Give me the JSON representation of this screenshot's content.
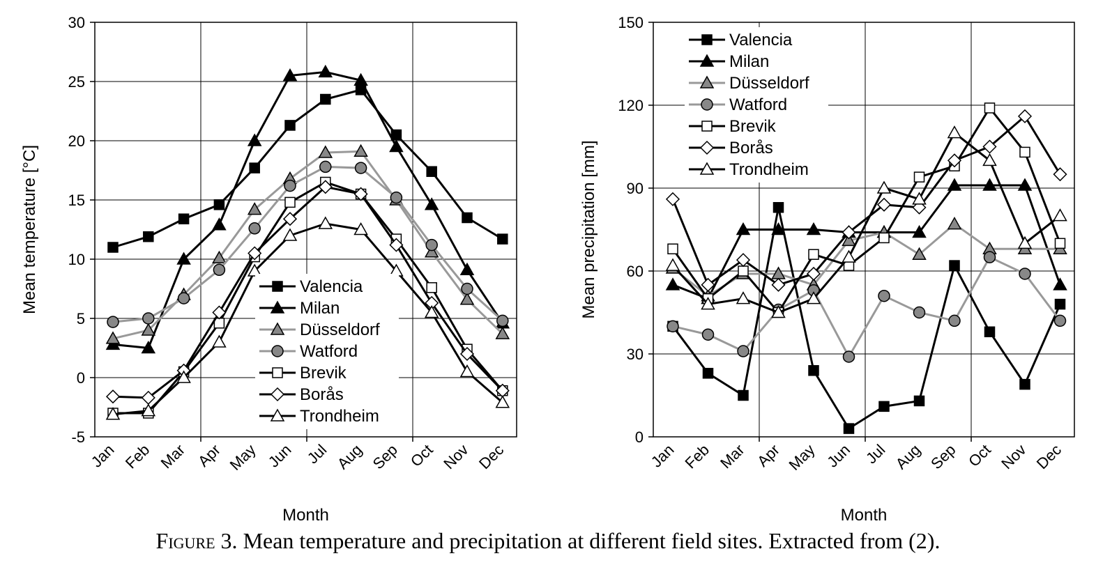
{
  "figure": {
    "caption_lead": "Figure 3.",
    "caption_text": " Mean temperature and precipitation at different field sites. Extracted from (2)."
  },
  "series_styles": [
    {
      "name": "Valencia",
      "color": "#000000",
      "marker": "square",
      "fill": "#000000"
    },
    {
      "name": "Milan",
      "color": "#000000",
      "marker": "triangle",
      "fill": "#000000"
    },
    {
      "name": "Düsseldorf",
      "color": "#999999",
      "marker": "triangle",
      "fill": "#888888"
    },
    {
      "name": "Watford",
      "color": "#999999",
      "marker": "circle",
      "fill": "#888888"
    },
    {
      "name": "Brevik",
      "color": "#000000",
      "marker": "square",
      "fill": "#ffffff"
    },
    {
      "name": "Borås",
      "color": "#000000",
      "marker": "diamond",
      "fill": "#ffffff"
    },
    {
      "name": "Trondheim",
      "color": "#000000",
      "marker": "triangle",
      "fill": "#ffffff"
    }
  ],
  "chart_data": [
    {
      "type": "line",
      "title": "",
      "xlabel": "Month",
      "ylabel": "Mean temperature [°C]",
      "categories": [
        "Jan",
        "Feb",
        "Mar",
        "Apr",
        "May",
        "Jun",
        "Jul",
        "Aug",
        "Sep",
        "Oct",
        "Nov",
        "Dec"
      ],
      "ylim": [
        -5,
        30
      ],
      "yticks": [
        -5,
        0,
        5,
        10,
        15,
        20,
        25,
        30
      ],
      "grid": true,
      "legend_position": "bottom-center",
      "series": [
        {
          "name": "Valencia",
          "values": [
            11.0,
            11.9,
            13.4,
            14.6,
            17.7,
            21.3,
            23.5,
            24.3,
            20.5,
            17.4,
            13.5,
            11.7
          ]
        },
        {
          "name": "Milan",
          "values": [
            2.8,
            2.5,
            10.0,
            12.9,
            20.0,
            25.5,
            25.8,
            25.1,
            19.5,
            14.6,
            9.1,
            4.6
          ]
        },
        {
          "name": "Düsseldorf",
          "values": [
            3.3,
            4.0,
            7.0,
            10.1,
            14.2,
            16.8,
            19.0,
            19.1,
            15.0,
            10.6,
            6.6,
            3.7
          ]
        },
        {
          "name": "Watford",
          "values": [
            4.7,
            5.0,
            6.7,
            9.1,
            12.6,
            16.2,
            17.8,
            17.7,
            15.2,
            11.2,
            7.5,
            4.8
          ]
        },
        {
          "name": "Brevik",
          "values": [
            -3.0,
            -3.0,
            0.5,
            4.6,
            10.2,
            14.8,
            16.5,
            15.5,
            11.7,
            7.6,
            2.4,
            -1.1
          ]
        },
        {
          "name": "Borås",
          "values": [
            -1.6,
            -1.7,
            0.6,
            5.5,
            10.5,
            13.4,
            16.1,
            15.5,
            11.2,
            6.3,
            2.0,
            -1.1
          ]
        },
        {
          "name": "Trondheim",
          "values": [
            -3.1,
            -2.8,
            0.0,
            3.0,
            9.0,
            12.0,
            13.0,
            12.5,
            9.0,
            5.5,
            0.5,
            -2.1
          ]
        }
      ]
    },
    {
      "type": "line",
      "title": "",
      "xlabel": "Month",
      "ylabel": "Mean precipitation [mm]",
      "categories": [
        "Jan",
        "Feb",
        "Mar",
        "Apr",
        "May",
        "Jun",
        "Jul",
        "Aug",
        "Sep",
        "Oct",
        "Nov",
        "Dec"
      ],
      "ylim": [
        0,
        150
      ],
      "yticks": [
        0,
        30,
        60,
        90,
        120,
        150
      ],
      "grid": true,
      "legend_position": "top-left",
      "series": [
        {
          "name": "Valencia",
          "values": [
            40,
            23,
            15,
            83,
            24,
            3,
            11,
            13,
            62,
            38,
            19,
            48
          ]
        },
        {
          "name": "Milan",
          "values": [
            55,
            50,
            75,
            75,
            75,
            74,
            74,
            74,
            91,
            91,
            91,
            55
          ]
        },
        {
          "name": "Düsseldorf",
          "values": [
            61,
            51,
            59,
            59,
            55,
            71,
            74,
            66,
            77,
            68,
            68,
            68
          ]
        },
        {
          "name": "Watford",
          "values": [
            40,
            37,
            31,
            46,
            53,
            29,
            51,
            45,
            42,
            65,
            59,
            42
          ]
        },
        {
          "name": "Brevik",
          "values": [
            68,
            50,
            60,
            45,
            66,
            62,
            72,
            94,
            98,
            119,
            103,
            70
          ]
        },
        {
          "name": "Borås",
          "values": [
            86,
            55,
            64,
            55,
            59,
            74,
            84,
            83,
            100,
            105,
            116,
            95
          ]
        },
        {
          "name": "Trondheim",
          "values": [
            62,
            48,
            50,
            45,
            50,
            65,
            90,
            86,
            110,
            100,
            70,
            80
          ]
        }
      ]
    }
  ]
}
